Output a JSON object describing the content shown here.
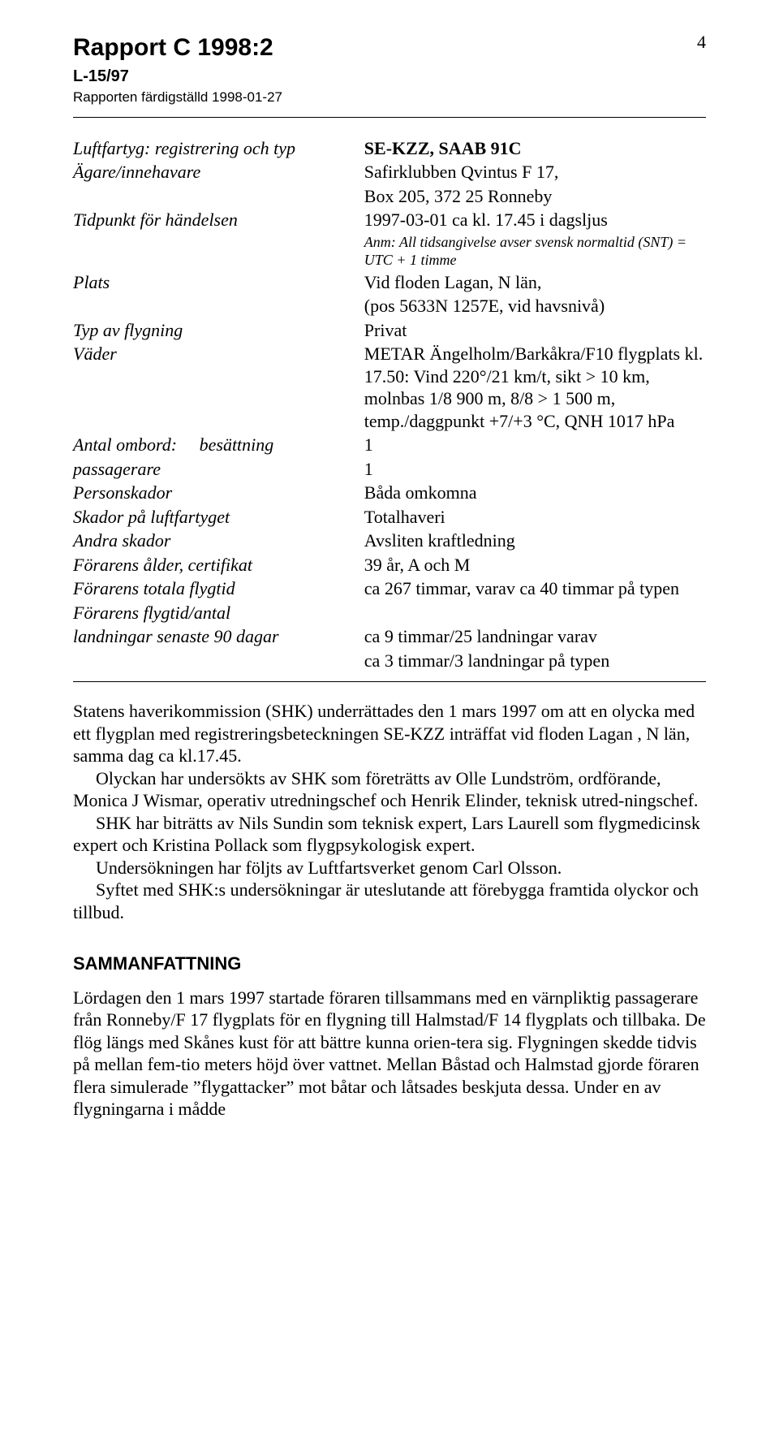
{
  "page_number": "4",
  "header": {
    "title": "Rapport C 1998:2",
    "subcode": "L-15/97",
    "completed": "Rapporten färdigställd 1998-01-27"
  },
  "facts": {
    "rows": [
      {
        "label": "Luftfartyg: registrering och typ",
        "value": "SE-KZZ, SAAB 91C"
      },
      {
        "label": "Ägare/innehavare",
        "value": "Safirklubben Qvintus F 17,"
      },
      {
        "label": "",
        "value": "Box 205, 372 25 Ronneby"
      },
      {
        "label": "Tidpunkt för händelsen",
        "value": "1997-03-01 ca kl. 17.45 i dagsljus"
      },
      {
        "label": "",
        "value_anm": "Anm: All tidsangivelse avser svensk normaltid (SNT) = UTC + 1 timme"
      },
      {
        "label": "Plats",
        "value": "Vid floden Lagan, N län,"
      },
      {
        "label": "",
        "value": "(pos 5633N 1257E, vid havsnivå)"
      },
      {
        "label": "Typ av flygning",
        "value": "Privat"
      },
      {
        "label": "Väder",
        "value": "METAR Ängelholm/Barkåkra/F10 flygplats kl. 17.50: Vind 220°/21 km/t, sikt > 10 km, molnbas 1/8 900 m, 8/8 > 1 500 m, temp./daggpunkt +7/+3 °C, QNH 1017 hPa"
      },
      {
        "label_html": "Antal ombord:&nbsp;&nbsp;&nbsp;&nbsp;&nbsp;besättning",
        "value": "1"
      },
      {
        "label_sub": "passagerare",
        "value": "1"
      },
      {
        "label": "Personskador",
        "value": "Båda omkomna"
      },
      {
        "label": "Skador på luftfartyget",
        "value": "Totalhaveri"
      },
      {
        "label": "Andra skador",
        "value": "Avsliten kraftledning"
      },
      {
        "label": "Förarens ålder, certifikat",
        "value": "39 år, A och M"
      },
      {
        "label": "Förarens totala flygtid",
        "value": "ca 267 timmar, varav ca 40 timmar på typen"
      },
      {
        "label": "Förarens flygtid/antal",
        "value": ""
      },
      {
        "label": "landningar senaste 90 dagar",
        "value": "ca 9 timmar/25 landningar varav"
      },
      {
        "label": "",
        "value": "ca 3 timmar/3 landningar på typen"
      }
    ]
  },
  "narrative": {
    "p1": "Statens haverikommission (SHK) underrättades den 1 mars 1997 om att en olycka med ett flygplan med registreringsbeteckningen SE-KZZ inträffat vid floden Lagan , N län, samma dag ca kl.17.45.",
    "p2": "Olyckan har undersökts av SHK som företrätts av Olle Lundström, ordförande, Monica J Wismar, operativ utredningschef och Henrik Elinder, teknisk utred-ningschef.",
    "p3": "SHK har biträtts av Nils Sundin som teknisk expert, Lars Laurell som flygmedicinsk expert och Kristina Pollack som flygpsykologisk expert.",
    "p4": "Undersökningen har följts av Luftfartsverket genom Carl Olsson.",
    "p5": "Syftet med SHK:s undersökningar är uteslutande att förebygga framtida olyckor och tillbud."
  },
  "summary": {
    "heading": "SAMMANFATTNING",
    "p1": "Lördagen den 1 mars 1997 startade föraren tillsammans med en värnpliktig passagerare från Ronneby/F 17 flygplats för en flygning till Halmstad/F 14 flygplats och tillbaka. De flög längs med Skånes kust för att bättre kunna orien-tera sig. Flygningen skedde tidvis på mellan fem-tio meters höjd över vattnet. Mellan Båstad och Halmstad gjorde föraren flera simulerade ”flygattacker” mot båtar och låtsades beskjuta dessa. Under en av flygningarna i mådde"
  }
}
